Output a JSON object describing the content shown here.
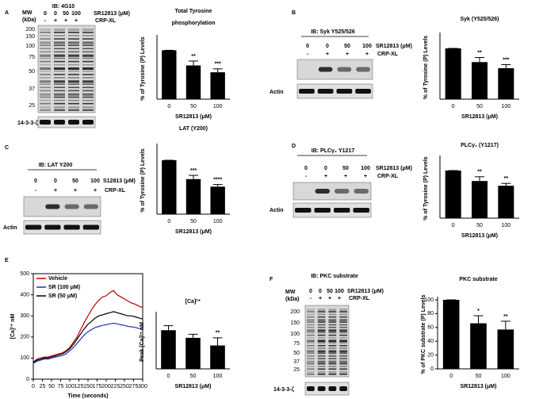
{
  "panels": [
    "A",
    "B",
    "C",
    "D",
    "E",
    "F"
  ],
  "blots": [
    {
      "title": "IB: 4G10",
      "mw_label": "MW",
      "mw_unit": "(kDa)",
      "markers": [
        200,
        150,
        100,
        75,
        50,
        37,
        25
      ],
      "lanes": [
        "0",
        "0",
        "50",
        "100"
      ],
      "treatment": "SR12813 (μM)",
      "stimulation": [
        "-",
        "+",
        "+",
        "+"
      ],
      "stimulation_label": "CRP-XL",
      "loading": "14-3-3-ζ"
    },
    {
      "title": "IB: Syk Y525/526",
      "lanes": [
        "0",
        "0",
        "50",
        "100"
      ],
      "treatment": "SR12813 (μM)",
      "stimulation": [
        "-",
        "+",
        "+",
        "+"
      ],
      "stimulation_label": "CRP-XL",
      "loading": "Actin"
    },
    {
      "title": "IB: LAT Y200",
      "lanes": [
        "0",
        "0",
        "50",
        "100"
      ],
      "treatment": "S12813 (μM)",
      "stimulation": [
        "-",
        "+",
        "+",
        "+"
      ],
      "stimulation_label": "CRP-XL",
      "loading": "Actin"
    },
    {
      "title": "IB: PLCγ₂ Y1217",
      "lanes": [
        "0",
        "0",
        "50",
        "100"
      ],
      "treatment": "SR12813 (μM)",
      "stimulation": [
        "-",
        "+",
        "+",
        "+"
      ],
      "stimulation_label": "CRP-XL",
      "loading": "Actin"
    },
    {
      "title": "IB: PKC substrate",
      "mw_label": "MW",
      "mw_unit": "(kDa)",
      "markers": [
        200,
        150,
        100,
        75,
        50,
        37,
        25
      ],
      "lanes": [
        "0",
        "0",
        "50",
        "100"
      ],
      "treatment": "SR12813 (μM)",
      "stimulation": [
        "-",
        "+",
        "+",
        "+"
      ],
      "stimulation_label": "CRP-XL",
      "loading": "14-3-3-ζ"
    }
  ],
  "chart_data": [
    {
      "type": "bar",
      "title": "Total Tyrosine phosphorylation",
      "y_label": "% of Tyrosine (P) Levels",
      "x_label": "SR12813 (μM)",
      "categories": [
        "0",
        "50",
        "100"
      ],
      "values": [
        100,
        69,
        55
      ],
      "errors": [
        0,
        9,
        7
      ],
      "significance": [
        null,
        "**",
        "***"
      ],
      "ylim": [
        0,
        125
      ],
      "color": "#000000"
    },
    {
      "type": "bar",
      "title": "Syk (Y525/526)",
      "y_label": "% of Tyrosine (P) Levels",
      "x_label": "SR12813 (μM)",
      "categories": [
        "0",
        "50",
        "100"
      ],
      "values": [
        100,
        73,
        61
      ],
      "errors": [
        0,
        9,
        7
      ],
      "significance": [
        null,
        "**",
        "***"
      ],
      "ylim": [
        0,
        125
      ],
      "color": "#000000"
    },
    {
      "type": "bar",
      "title": "LAT (Y200)",
      "y_label": "% of Tyrosine (P) Levels",
      "x_label": "SR12813 (μM)",
      "categories": [
        "0",
        "50",
        "100"
      ],
      "values": [
        100,
        65,
        51
      ],
      "errors": [
        0,
        7,
        4
      ],
      "significance": [
        null,
        "***",
        "****"
      ],
      "ylim": [
        0,
        125
      ],
      "color": "#000000"
    },
    {
      "type": "bar",
      "title": "PLCγ₂ (Y1217)",
      "y_label": "% of Tyrosine (P) Levels",
      "x_label": "SR12813 (μM)",
      "categories": [
        "0",
        "50",
        "100"
      ],
      "values": [
        100,
        78,
        68
      ],
      "errors": [
        0,
        9,
        5
      ],
      "significance": [
        null,
        "**",
        "**"
      ],
      "ylim": [
        0,
        125
      ],
      "color": "#000000"
    },
    {
      "type": "line",
      "y_label": "[Ca]²⁺ nM",
      "x_label": "Time (seconds)",
      "x": [
        0,
        10,
        20,
        30,
        40,
        50,
        60,
        70,
        80,
        90,
        100,
        110,
        120,
        130,
        140,
        150,
        160,
        170,
        180,
        190,
        200,
        210,
        220,
        230,
        240,
        250,
        260,
        270,
        280,
        290,
        300
      ],
      "series": [
        {
          "name": "Vehicle",
          "color": "#c00000",
          "values": [
            80,
            95,
            100,
            105,
            105,
            110,
            115,
            120,
            125,
            135,
            150,
            175,
            200,
            235,
            270,
            300,
            330,
            355,
            375,
            390,
            395,
            410,
            420,
            400,
            390,
            380,
            370,
            360,
            355,
            345,
            340
          ]
        },
        {
          "name": "SR (100 μM)",
          "color": "#2233aa",
          "values": [
            75,
            85,
            90,
            95,
            95,
            100,
            105,
            108,
            112,
            120,
            135,
            150,
            170,
            190,
            210,
            225,
            235,
            245,
            250,
            255,
            258,
            262,
            265,
            262,
            258,
            255,
            250,
            248,
            245,
            240,
            238
          ]
        },
        {
          "name": "SR (50 μM)",
          "color": "#000000",
          "values": [
            80,
            90,
            95,
            100,
            100,
            105,
            110,
            115,
            120,
            130,
            145,
            165,
            190,
            215,
            240,
            260,
            275,
            290,
            300,
            305,
            310,
            315,
            320,
            315,
            310,
            305,
            300,
            300,
            295,
            290,
            285
          ]
        }
      ],
      "xlim": [
        0,
        300
      ],
      "xticks": [
        0,
        25,
        50,
        75,
        100,
        125,
        150,
        175,
        200,
        225,
        250,
        275,
        300
      ],
      "ylim": [
        0,
        500
      ],
      "yticks": [
        0,
        100,
        200,
        300,
        400,
        500
      ],
      "legend": "upper left"
    },
    {
      "type": "bar",
      "title": "[Ca]²⁺",
      "y_label": "Peak [Ca]²⁺ nM",
      "x_label": "SR12813 (μM)",
      "categories": [
        "0",
        "50",
        "100"
      ],
      "values": [
        430,
        345,
        260
      ],
      "errors": [
        50,
        40,
        85
      ],
      "significance": [
        null,
        null,
        "**"
      ],
      "ylim": [
        0,
        600
      ],
      "color": "#000000"
    },
    {
      "type": "bar",
      "title": "PKC substrate",
      "y_label": "% of PKC substrate (P) Levels",
      "x_label": "SR12813 (μM)",
      "categories": [
        "0",
        "50",
        "100"
      ],
      "values": [
        100,
        66,
        57
      ],
      "errors": [
        0,
        11,
        12
      ],
      "significance": [
        null,
        "*",
        "**"
      ],
      "ylim": [
        0,
        100
      ],
      "yticks": [
        0,
        20,
        40,
        60,
        80,
        100
      ],
      "color": "#000000"
    }
  ]
}
